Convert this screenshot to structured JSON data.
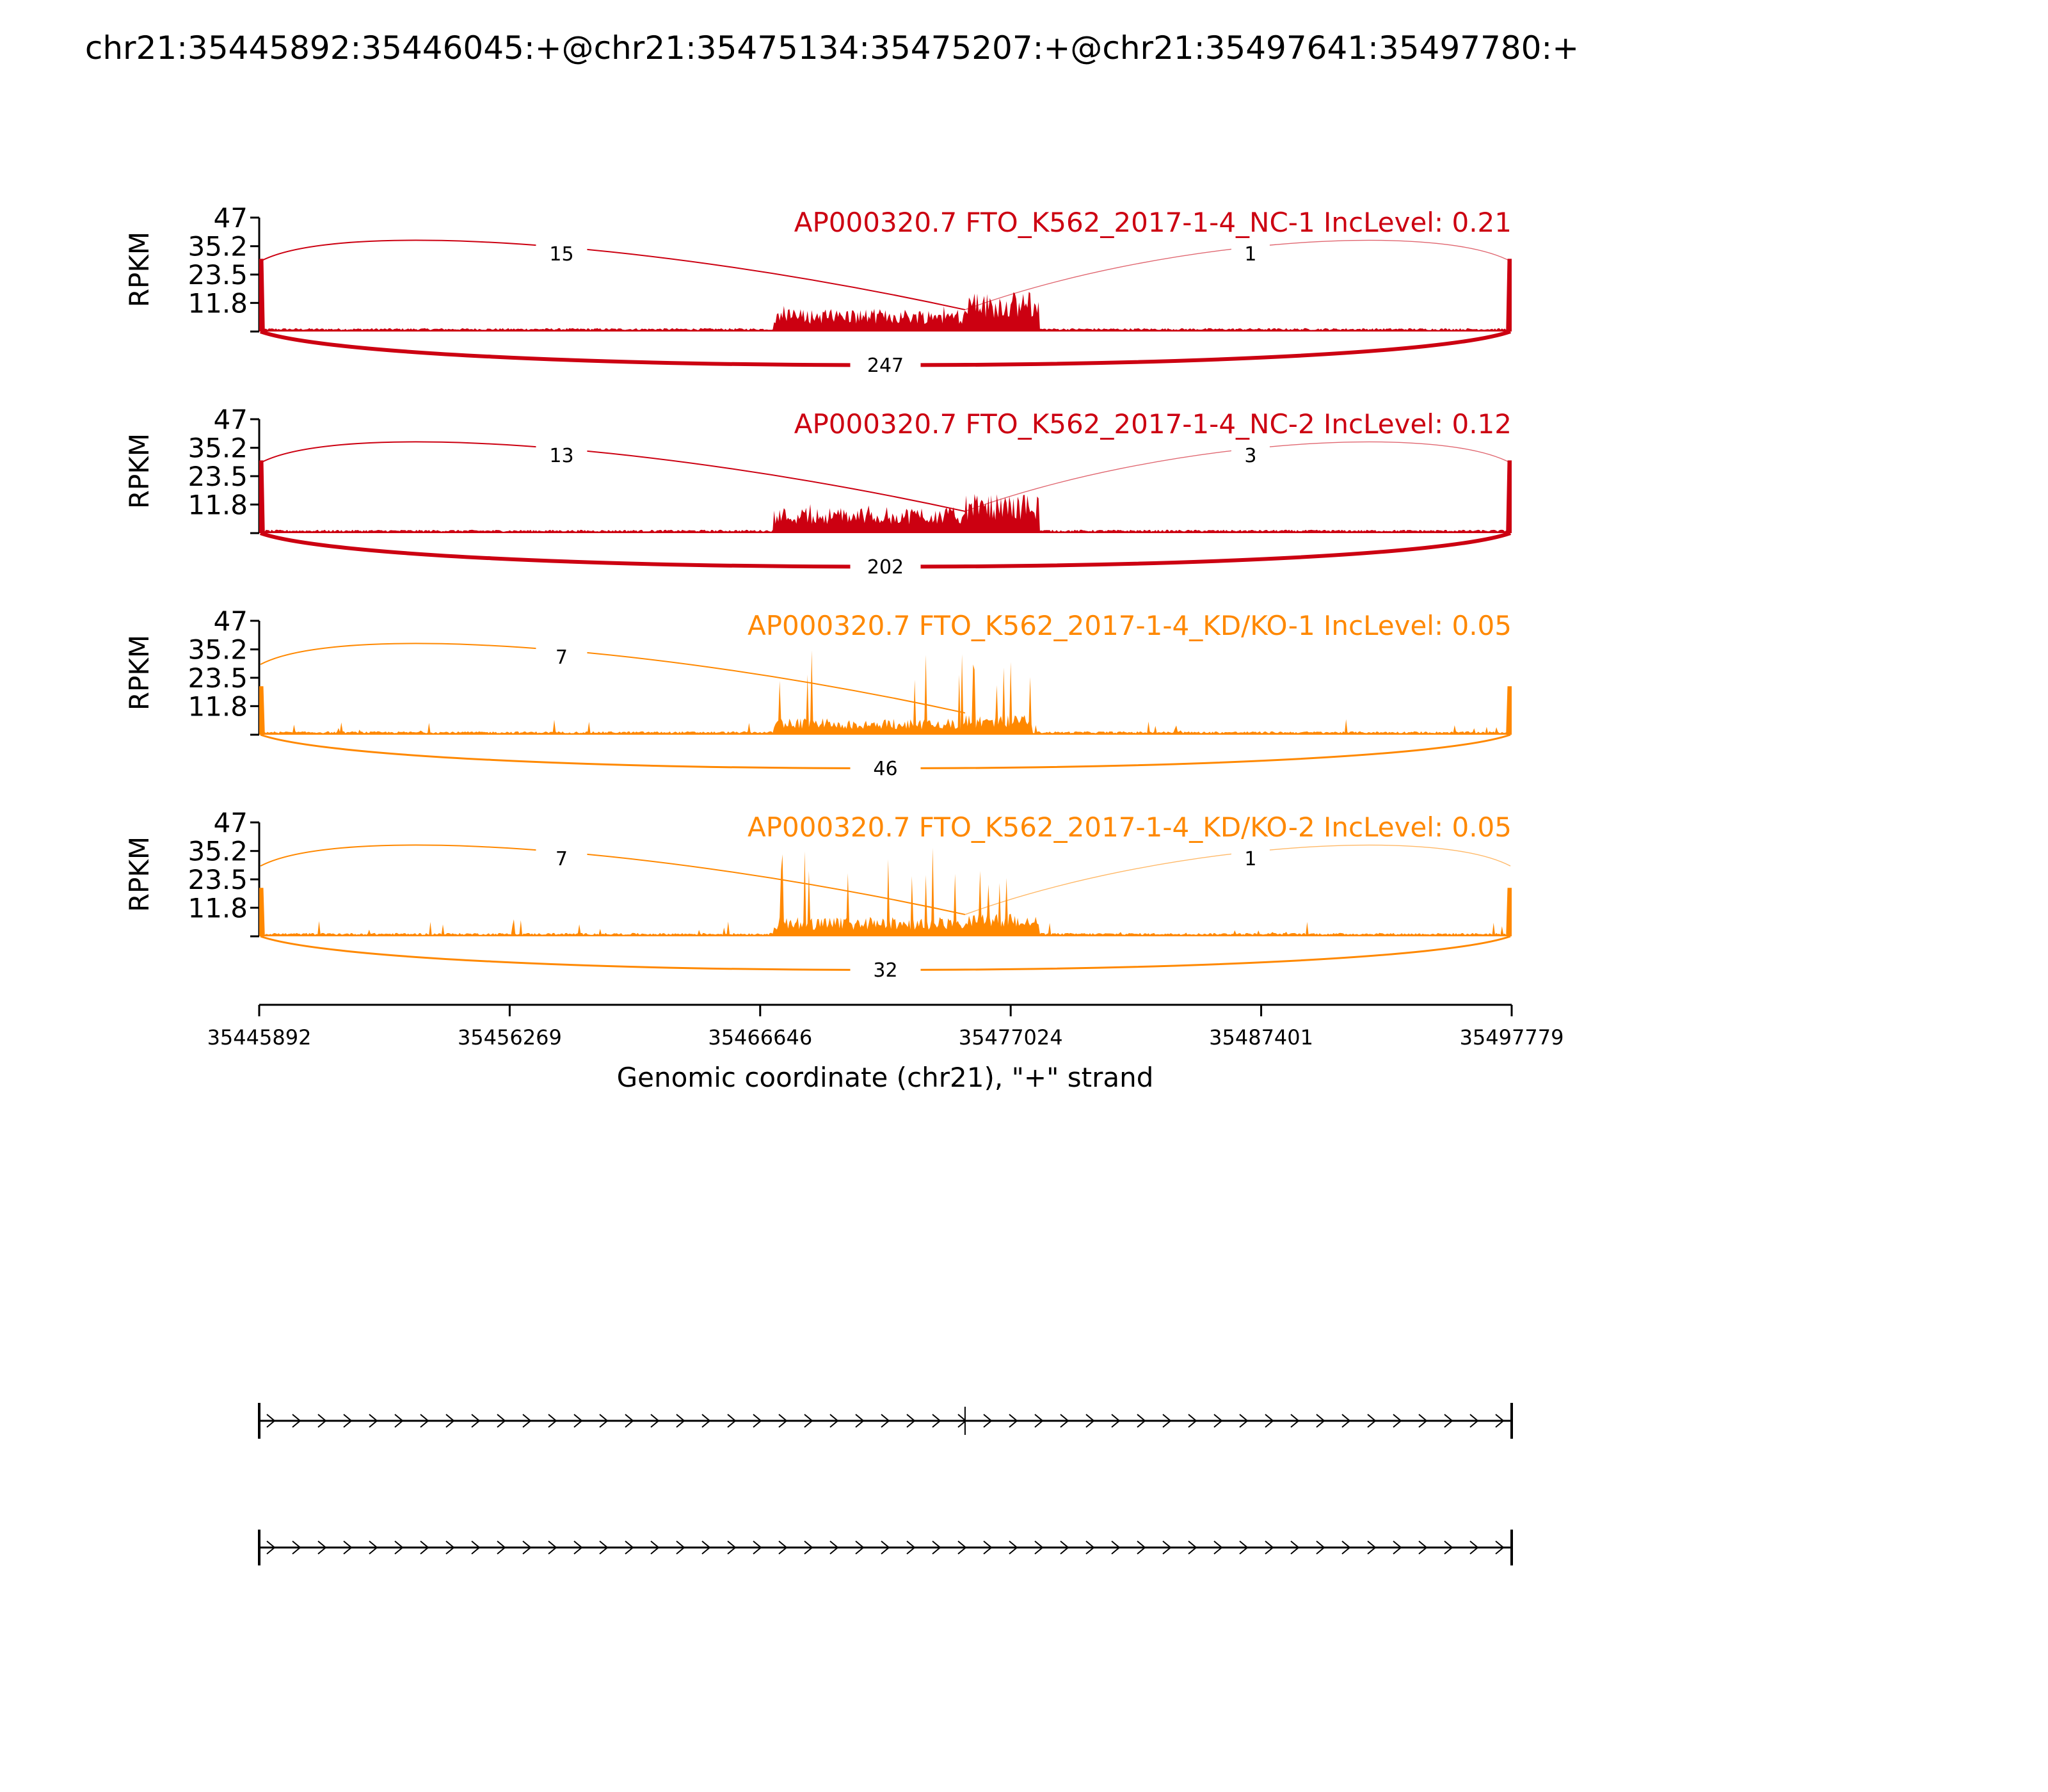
{
  "figure": {
    "title": "chr21:35445892:35446045:+@chr21:35475134:35475207:+@chr21:35497641:35497780:+"
  },
  "chart_data": {
    "type": "area",
    "title": "chr21:35445892:35446045:+@chr21:35475134:35475207:+@chr21:35497641:35497780:+",
    "ylabel": "RPKM",
    "xlabel": "Genomic coordinate (chr21), \"+\" strand",
    "xlim": [
      35445892,
      35497779
    ],
    "xticks": [
      "35445892",
      "35456269",
      "35466646",
      "35477024",
      "35487401",
      "35497779"
    ],
    "ylim": [
      0,
      47
    ],
    "yticks": [
      "47",
      "35.2",
      "23.5",
      "11.8"
    ],
    "exon_positions": {
      "upstream": 35445892,
      "middle": 35475134,
      "downstream": 35497641
    },
    "series": [
      {
        "name": "AP000320.7 FTO_K562_2017-1-4_NC-1 IncLevel: 0.21",
        "color": "#cc0011",
        "group": "NC",
        "junctions": {
          "upstream_to_middle": "15",
          "middle_to_downstream": "1",
          "skipping": "247"
        },
        "coverage_regions": [
          {
            "start": 35467200,
            "end": 35475134,
            "level": 7,
            "peak": 11
          },
          {
            "start": 35475134,
            "end": 35478200,
            "level": 12,
            "peak": 18
          }
        ]
      },
      {
        "name": "AP000320.7 FTO_K562_2017-1-4_NC-2 IncLevel: 0.12",
        "color": "#cc0011",
        "group": "NC",
        "junctions": {
          "upstream_to_middle": "13",
          "middle_to_downstream": "3",
          "skipping": "202"
        },
        "coverage_regions": [
          {
            "start": 35467200,
            "end": 35475134,
            "level": 8,
            "peak": 12
          },
          {
            "start": 35475134,
            "end": 35478200,
            "level": 12,
            "peak": 19
          }
        ]
      },
      {
        "name": "AP000320.7 FTO_K562_2017-1-4_KD/KO-1 IncLevel: 0.05",
        "color": "#ff8800",
        "group": "KD",
        "junctions": {
          "upstream_to_middle": "7",
          "middle_to_downstream": "",
          "skipping": "46"
        },
        "coverage_regions": [
          {
            "start": 35467200,
            "end": 35475134,
            "level": 5,
            "peak": 35
          },
          {
            "start": 35475134,
            "end": 35477900,
            "level": 6,
            "peak": 34
          }
        ]
      },
      {
        "name": "AP000320.7 FTO_K562_2017-1-4_KD/KO-2 IncLevel: 0.05",
        "color": "#ff8800",
        "group": "KD",
        "junctions": {
          "upstream_to_middle": "7",
          "middle_to_downstream": "1",
          "skipping": "32"
        },
        "coverage_regions": [
          {
            "start": 35467200,
            "end": 35475134,
            "level": 6,
            "peak": 37
          },
          {
            "start": 35475134,
            "end": 35478200,
            "level": 7,
            "peak": 28
          }
        ]
      }
    ],
    "isoforms": [
      {
        "exons": [
          35445892,
          35475134,
          35497779
        ]
      },
      {
        "exons": [
          35445892,
          35497779
        ]
      }
    ]
  }
}
